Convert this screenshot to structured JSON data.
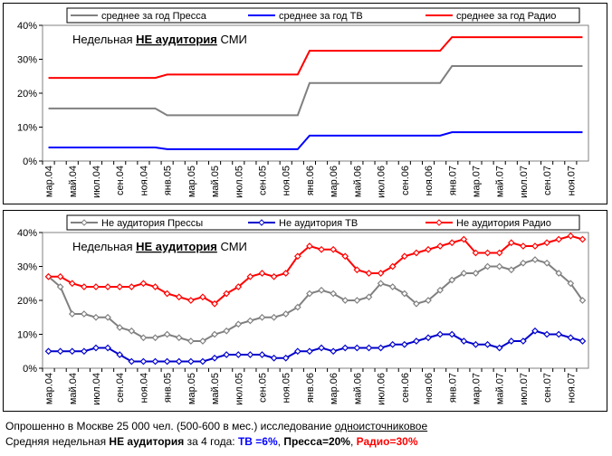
{
  "chart_data": [
    {
      "type": "line",
      "annotation": [
        "Недельная ",
        "НЕ аудитория",
        " СМИ"
      ],
      "categories": [
        "мар.04",
        null,
        "май.04",
        null,
        "июл.04",
        null,
        "сен.04",
        null,
        "ноя.04",
        null,
        "янв.05",
        null,
        "мар.05",
        null,
        "май.05",
        null,
        "июл.05",
        null,
        "сен.05",
        null,
        "ноя.05",
        null,
        "янв.06",
        null,
        "мар.06",
        null,
        "май.06",
        null,
        "июл.06",
        null,
        "сен.06",
        null,
        "ноя.06",
        null,
        "янв.07",
        null,
        "мар.07",
        null,
        "май.07",
        null,
        "июл.07",
        null,
        "сен.07",
        null,
        "ноя.07",
        null
      ],
      "series": [
        {
          "name": "среднее за год Пресса",
          "color": "#808080",
          "values": [
            15.5,
            15.5,
            15.5,
            15.5,
            15.5,
            15.5,
            15.5,
            15.5,
            15.5,
            15.5,
            13.5,
            13.5,
            13.5,
            13.5,
            13.5,
            13.5,
            13.5,
            13.5,
            13.5,
            13.5,
            13.5,
            13.5,
            23,
            23,
            23,
            23,
            23,
            23,
            23,
            23,
            23,
            23,
            23,
            23,
            28,
            28,
            28,
            28,
            28,
            28,
            28,
            28,
            28,
            28,
            28,
            28
          ]
        },
        {
          "name": "среднее за год ТВ",
          "color": "#0000ff",
          "values": [
            4,
            4,
            4,
            4,
            4,
            4,
            4,
            4,
            4,
            4,
            3.5,
            3.5,
            3.5,
            3.5,
            3.5,
            3.5,
            3.5,
            3.5,
            3.5,
            3.5,
            3.5,
            3.5,
            7.5,
            7.5,
            7.5,
            7.5,
            7.5,
            7.5,
            7.5,
            7.5,
            7.5,
            7.5,
            7.5,
            7.5,
            8.5,
            8.5,
            8.5,
            8.5,
            8.5,
            8.5,
            8.5,
            8.5,
            8.5,
            8.5,
            8.5,
            8.5
          ]
        },
        {
          "name": "среднее за год Радио",
          "color": "#ff0000",
          "values": [
            24.5,
            24.5,
            24.5,
            24.5,
            24.5,
            24.5,
            24.5,
            24.5,
            24.5,
            24.5,
            25.5,
            25.5,
            25.5,
            25.5,
            25.5,
            25.5,
            25.5,
            25.5,
            25.5,
            25.5,
            25.5,
            25.5,
            32.5,
            32.5,
            32.5,
            32.5,
            32.5,
            32.5,
            32.5,
            32.5,
            32.5,
            32.5,
            32.5,
            32.5,
            36.5,
            36.5,
            36.5,
            36.5,
            36.5,
            36.5,
            36.5,
            36.5,
            36.5,
            36.5,
            36.5,
            36.5
          ]
        }
      ],
      "ylim": [
        0,
        40
      ],
      "yticks": [
        {
          "value": 0,
          "label": "0%"
        },
        {
          "value": 10,
          "label": "10%"
        },
        {
          "value": 20,
          "label": "20%"
        },
        {
          "value": 30,
          "label": "30%"
        },
        {
          "value": 40,
          "label": "40%"
        }
      ],
      "grid": false,
      "markers": false,
      "legend": "top"
    },
    {
      "type": "line",
      "annotation": [
        "Недельная ",
        "НЕ аудитория",
        " СМИ"
      ],
      "categories": [
        "мар.04",
        null,
        "май.04",
        null,
        "июл.04",
        null,
        "сен.04",
        null,
        "ноя.04",
        null,
        "янв.05",
        null,
        "мар.05",
        null,
        "май.05",
        null,
        "июл.05",
        null,
        "сен.05",
        null,
        "ноя.05",
        null,
        "янв.06",
        null,
        "мар.06",
        null,
        "май.06",
        null,
        "июл.06",
        null,
        "сен.06",
        null,
        "ноя.06",
        null,
        "янв.07",
        null,
        "мар.07",
        null,
        "май.07",
        null,
        "июл.07",
        null,
        "сен.07",
        null,
        "ноя.07",
        null
      ],
      "series": [
        {
          "name": "Не аудитория Прессы",
          "color": "#808080",
          "values": [
            27,
            24,
            16,
            16,
            15,
            15,
            12,
            11,
            9,
            9,
            10,
            9,
            8,
            8,
            10,
            11,
            13,
            14,
            15,
            15,
            16,
            18,
            22,
            23,
            22,
            20,
            20,
            21,
            25,
            24,
            22,
            19,
            20,
            23,
            26,
            28,
            28,
            30,
            30,
            29,
            31,
            32,
            31,
            28,
            25,
            20
          ]
        },
        {
          "name": "Не аудитория ТВ",
          "color": "#0000cc",
          "values": [
            5,
            5,
            5,
            5,
            6,
            6,
            4,
            2,
            2,
            2,
            2,
            2,
            2,
            2,
            3,
            4,
            4,
            4,
            4,
            3,
            3,
            5,
            5,
            6,
            5,
            6,
            6,
            6,
            6,
            7,
            7,
            8,
            9,
            10,
            10,
            8,
            7,
            7,
            6,
            8,
            8,
            11,
            10,
            10,
            9,
            8
          ]
        },
        {
          "name": "Не аудитория Радио",
          "color": "#ff0000",
          "values": [
            27,
            27,
            25,
            24,
            24,
            24,
            24,
            24,
            25,
            24,
            22,
            21,
            20,
            21,
            19,
            22,
            24,
            27,
            28,
            27,
            28,
            33,
            36,
            35,
            35,
            33,
            29,
            28,
            28,
            30,
            33,
            34,
            35,
            36,
            37,
            38,
            34,
            34,
            34,
            37,
            36,
            36,
            37,
            38,
            39,
            38
          ]
        }
      ],
      "ylim": [
        0,
        40
      ],
      "yticks": [
        {
          "value": 0,
          "label": "0%"
        },
        {
          "value": 10,
          "label": "10%"
        },
        {
          "value": 20,
          "label": "20%"
        },
        {
          "value": 30,
          "label": "30%"
        },
        {
          "value": 40,
          "label": "40%"
        }
      ],
      "grid": false,
      "markers": true,
      "legend": "top"
    }
  ],
  "footer": {
    "line1": [
      "Опрошенно в Москве 25 000 чел. (500-600 в мес.) исследование ",
      "одноисточниковое"
    ],
    "line2": [
      "Средняя недельная ",
      "НЕ аудитория",
      " за 4 года: ",
      "ТВ =6%",
      ", ",
      "Пресса=20%",
      ", ",
      "Радио=30%"
    ]
  }
}
